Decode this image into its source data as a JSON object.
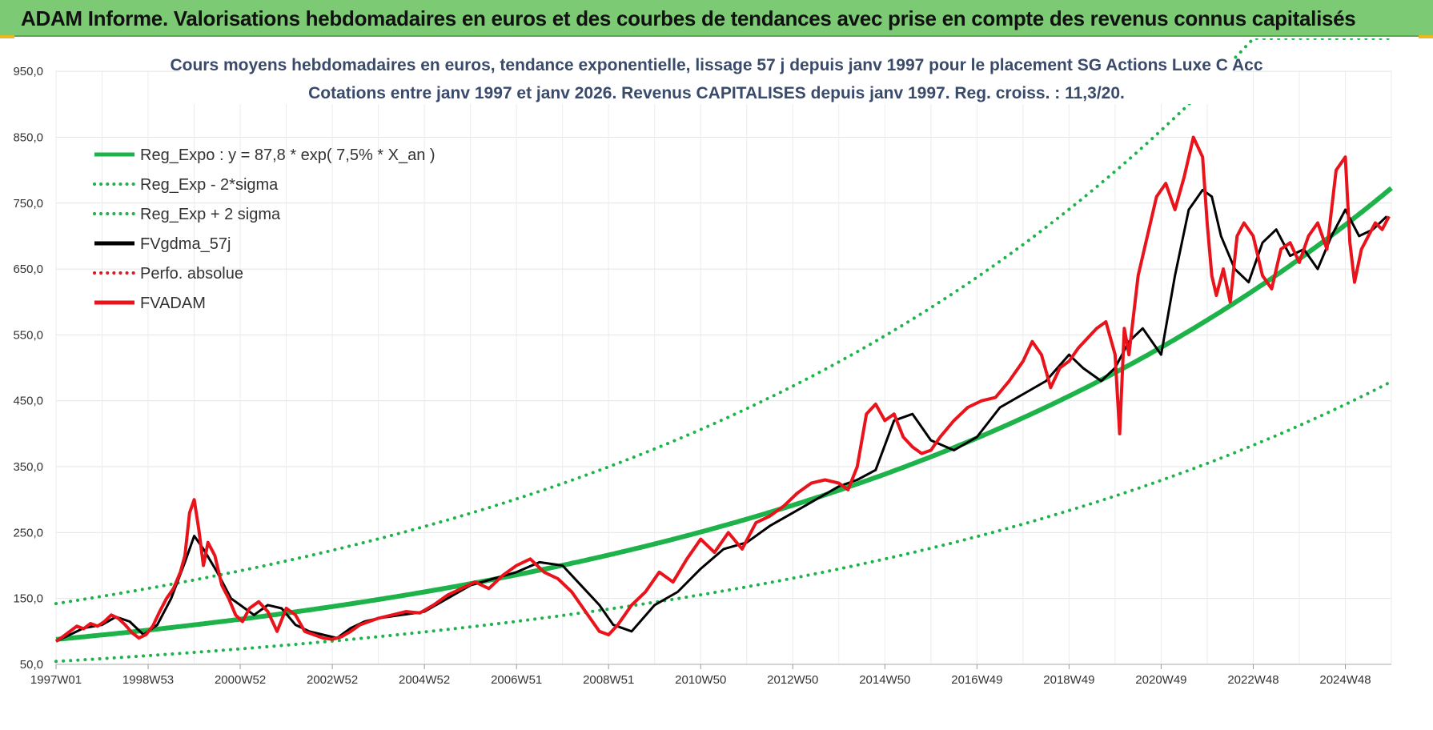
{
  "header": {
    "banner": "ADAM Informe. Valorisations hebdomadaires en euros et des courbes de tendances avec prise en compte des revenus connus capitalisés"
  },
  "chart_data": {
    "type": "line",
    "title": "Cours moyens hebdomadaires en euros, tendance exponentielle, lissage 57 j depuis janv 1997 pour le placement SG Actions Luxe C Acc",
    "subtitle": "Cotations entre janv 1997 et janv 2026. Revenus CAPITALISES depuis janv 1997. Reg. croiss. : 11,3/20.",
    "xlabel": "",
    "ylabel": "",
    "ylim": [
      50,
      1000
    ],
    "xlim": [
      1997.0,
      2026.0
    ],
    "yticks": [
      50,
      150,
      250,
      350,
      450,
      550,
      650,
      750,
      850,
      950
    ],
    "ytick_labels": [
      "50,0",
      "150,0",
      "250,0",
      "350,0",
      "450,0",
      "550,0",
      "650,0",
      "750,0",
      "850,0",
      "950,0"
    ],
    "xtick_labels": [
      "1997W01",
      "1998W53",
      "2000W52",
      "2002W52",
      "2004W52",
      "2006W51",
      "2008W51",
      "2010W50",
      "2012W50",
      "2014W50",
      "2016W49",
      "2018W49",
      "2020W49",
      "2022W48",
      "2024W48"
    ],
    "xtick_positions": [
      1997.0,
      1999.0,
      2001.0,
      2003.0,
      2005.0,
      2007.0,
      2009.0,
      2011.0,
      2013.0,
      2015.0,
      2017.0,
      2019.0,
      2021.0,
      2023.0,
      2025.0
    ],
    "grid": true,
    "legend_position": "top-left",
    "regression": {
      "base": 87.8,
      "rate": 0.075,
      "lower_factor": 0.62,
      "upper_factor": 1.62
    },
    "series": [
      {
        "name": "Reg_Expo : y = 87,8 * exp( 7,5% *  X_an )",
        "style": "solid",
        "color": "#1db34a"
      },
      {
        "name": "Reg_Exp - 2*sigma",
        "style": "dotted",
        "color": "#1db34a"
      },
      {
        "name": "Reg_Exp + 2 sigma",
        "style": "dotted",
        "color": "#1db34a"
      },
      {
        "name": "FVgdma_57j",
        "style": "solid",
        "color": "#000000",
        "x": [
          1997.0,
          1997.3,
          1997.6,
          1998.0,
          1998.3,
          1998.6,
          1998.9,
          1999.2,
          1999.5,
          1999.8,
          2000.0,
          2000.2,
          2000.5,
          2000.8,
          2001.0,
          2001.3,
          2001.6,
          2001.9,
          2002.2,
          2002.5,
          2002.8,
          2003.1,
          2003.4,
          2003.7,
          2004.0,
          2004.5,
          2005.0,
          2005.5,
          2006.0,
          2006.5,
          2007.0,
          2007.5,
          2008.0,
          2008.4,
          2008.8,
          2009.1,
          2009.5,
          2010.0,
          2010.5,
          2011.0,
          2011.5,
          2012.0,
          2012.5,
          2013.0,
          2013.5,
          2014.0,
          2014.4,
          2014.8,
          2015.2,
          2015.6,
          2016.0,
          2016.5,
          2017.0,
          2017.5,
          2018.0,
          2018.5,
          2019.0,
          2019.3,
          2019.7,
          2020.0,
          2020.3,
          2020.6,
          2021.0,
          2021.3,
          2021.6,
          2021.9,
          2022.1,
          2022.3,
          2022.6,
          2022.9,
          2023.2,
          2023.5,
          2023.8,
          2024.1,
          2024.4,
          2024.7,
          2025.0,
          2025.3,
          2025.6,
          2025.9
        ],
        "values": [
          85,
          95,
          105,
          110,
          122,
          115,
          95,
          110,
          150,
          205,
          245,
          225,
          190,
          150,
          140,
          125,
          140,
          135,
          110,
          100,
          95,
          90,
          105,
          115,
          120,
          125,
          130,
          150,
          170,
          180,
          190,
          205,
          200,
          170,
          140,
          110,
          100,
          140,
          160,
          195,
          225,
          235,
          260,
          280,
          300,
          320,
          330,
          345,
          420,
          430,
          390,
          375,
          395,
          440,
          460,
          480,
          520,
          500,
          480,
          500,
          540,
          560,
          520,
          640,
          740,
          770,
          760,
          700,
          650,
          630,
          690,
          710,
          670,
          680,
          650,
          700,
          740,
          700,
          710,
          730
        ]
      },
      {
        "name": "Perfo. absolue",
        "style": "dotted",
        "color": "#e8131b"
      },
      {
        "name": "FVADAM",
        "style": "solid",
        "color": "#e8131b",
        "x": [
          1997.0,
          1997.15,
          1997.3,
          1997.45,
          1997.6,
          1997.75,
          1997.9,
          1998.05,
          1998.2,
          1998.35,
          1998.5,
          1998.65,
          1998.8,
          1998.95,
          1999.1,
          1999.25,
          1999.4,
          1999.55,
          1999.7,
          1999.8,
          1999.9,
          2000.0,
          2000.1,
          2000.2,
          2000.3,
          2000.45,
          2000.6,
          2000.75,
          2000.9,
          2001.05,
          2001.2,
          2001.4,
          2001.6,
          2001.8,
          2002.0,
          2002.2,
          2002.4,
          2002.6,
          2002.8,
          2003.0,
          2003.2,
          2003.4,
          2003.6,
          2003.8,
          2004.0,
          2004.3,
          2004.6,
          2004.9,
          2005.2,
          2005.5,
          2005.8,
          2006.1,
          2006.4,
          2006.7,
          2007.0,
          2007.3,
          2007.6,
          2007.9,
          2008.2,
          2008.5,
          2008.8,
          2009.0,
          2009.2,
          2009.5,
          2009.8,
          2010.1,
          2010.4,
          2010.7,
          2011.0,
          2011.3,
          2011.6,
          2011.9,
          2012.2,
          2012.5,
          2012.8,
          2013.1,
          2013.4,
          2013.7,
          2014.0,
          2014.2,
          2014.4,
          2014.6,
          2014.8,
          2015.0,
          2015.2,
          2015.4,
          2015.6,
          2015.8,
          2016.0,
          2016.2,
          2016.5,
          2016.8,
          2017.1,
          2017.4,
          2017.7,
          2018.0,
          2018.2,
          2018.4,
          2018.6,
          2018.8,
          2019.0,
          2019.2,
          2019.4,
          2019.6,
          2019.8,
          2020.0,
          2020.1,
          2020.2,
          2020.3,
          2020.5,
          2020.7,
          2020.9,
          2021.1,
          2021.3,
          2021.5,
          2021.7,
          2021.9,
          2022.0,
          2022.1,
          2022.2,
          2022.35,
          2022.5,
          2022.65,
          2022.8,
          2023.0,
          2023.2,
          2023.4,
          2023.6,
          2023.8,
          2024.0,
          2024.2,
          2024.4,
          2024.6,
          2024.8,
          2025.0,
          2025.1,
          2025.2,
          2025.35,
          2025.5,
          2025.65,
          2025.8,
          2025.95
        ],
        "values": [
          85,
          92,
          100,
          108,
          104,
          112,
          108,
          115,
          125,
          120,
          110,
          98,
          90,
          95,
          108,
          130,
          150,
          165,
          190,
          215,
          280,
          300,
          255,
          200,
          235,
          215,
          170,
          150,
          125,
          115,
          135,
          145,
          130,
          100,
          135,
          125,
          100,
          95,
          90,
          88,
          92,
          100,
          110,
          115,
          120,
          125,
          130,
          128,
          140,
          155,
          165,
          175,
          165,
          185,
          200,
          210,
          190,
          180,
          160,
          130,
          100,
          95,
          110,
          140,
          160,
          190,
          175,
          210,
          240,
          220,
          250,
          225,
          265,
          275,
          290,
          310,
          325,
          330,
          325,
          315,
          350,
          430,
          445,
          420,
          430,
          395,
          380,
          370,
          375,
          395,
          420,
          440,
          450,
          455,
          480,
          510,
          540,
          520,
          470,
          500,
          510,
          530,
          545,
          560,
          570,
          520,
          400,
          560,
          520,
          640,
          700,
          760,
          780,
          740,
          790,
          850,
          820,
          720,
          640,
          610,
          650,
          600,
          700,
          720,
          700,
          640,
          620,
          680,
          690,
          660,
          700,
          720,
          680,
          800,
          820,
          690,
          630,
          680,
          700,
          720,
          710,
          730
        ]
      }
    ]
  }
}
